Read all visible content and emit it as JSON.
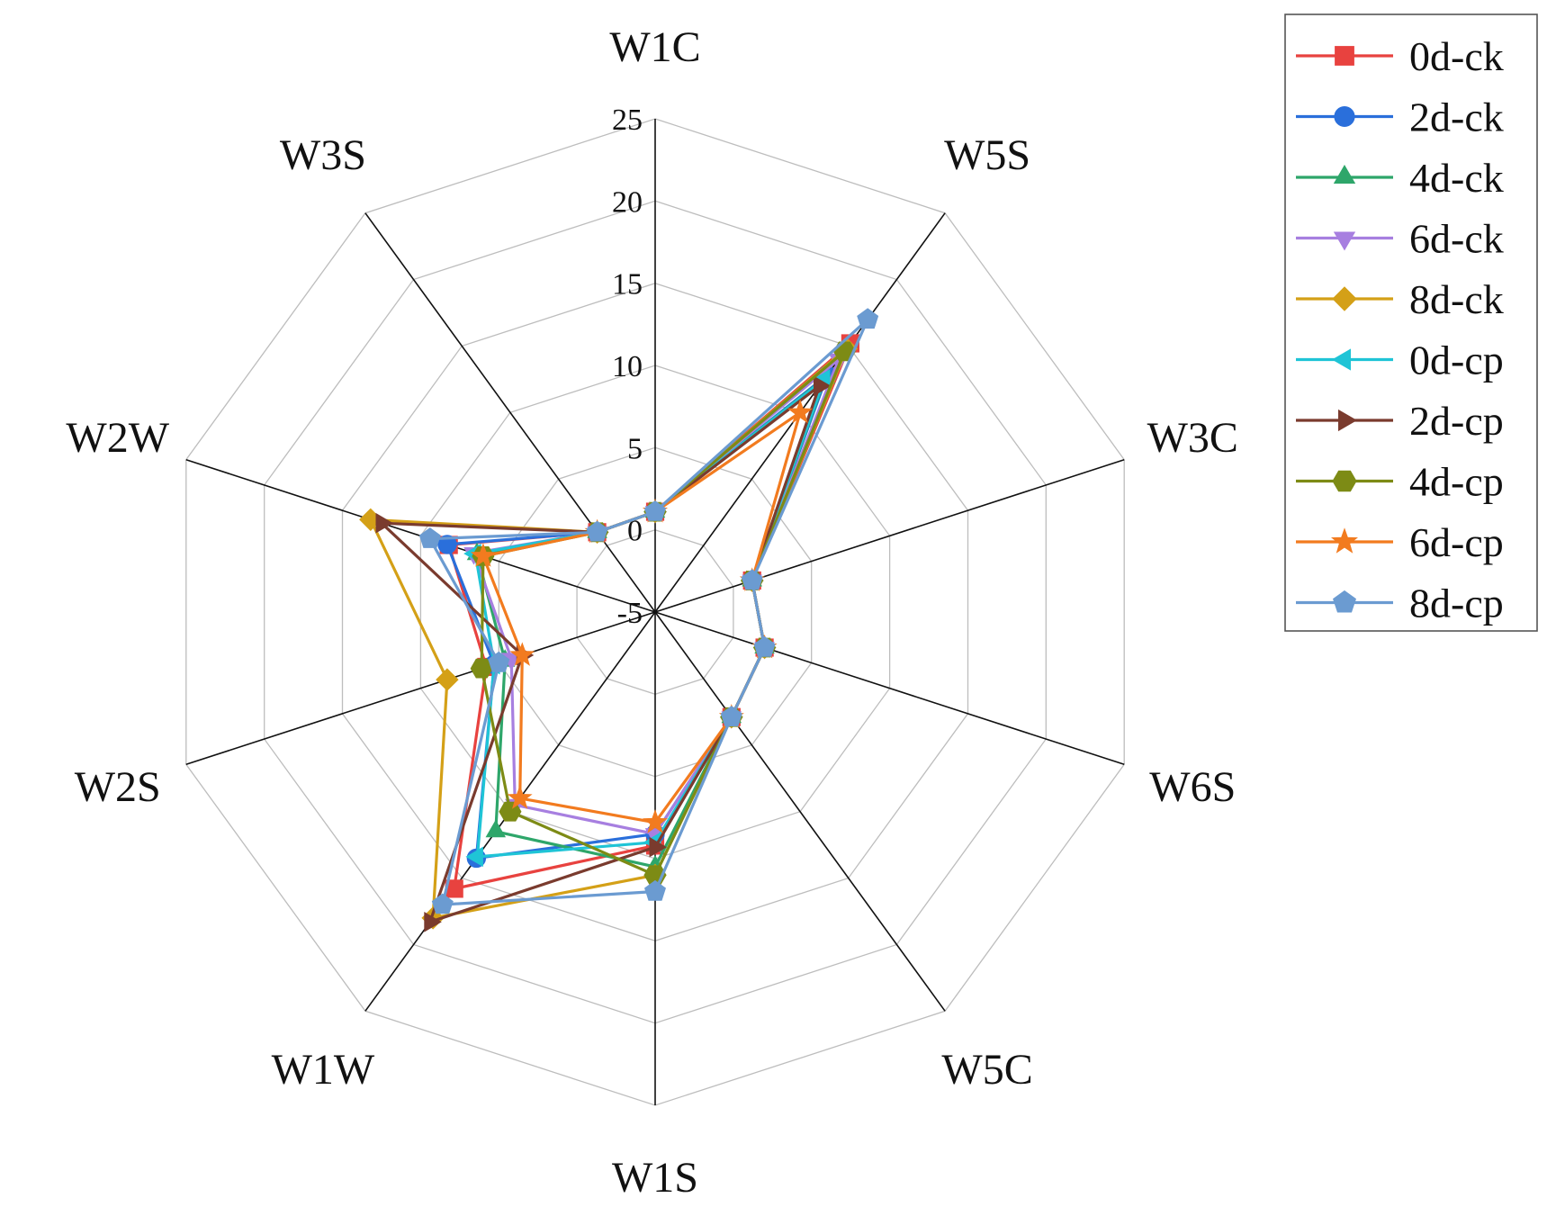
{
  "chart_data": {
    "type": "radar",
    "title": "",
    "axes": [
      "W1C",
      "W5S",
      "W3C",
      "W6S",
      "W5C",
      "W1S",
      "W1W",
      "W2S",
      "W2W",
      "W3S"
    ],
    "rlim": [
      -5,
      25
    ],
    "ticks": [
      -5,
      0,
      5,
      10,
      15,
      20,
      25
    ],
    "tick_labels": [
      "-5",
      "0",
      "5",
      "10",
      "15",
      "20",
      "25"
    ],
    "grid": true,
    "legend_position": "top-right",
    "series": [
      {
        "name": "0d-ck",
        "color": "#e8423f",
        "marker": "square",
        "values": [
          1.1,
          15.2,
          1.2,
          2.0,
          2.9,
          9.2,
          15.8,
          5.8,
          8.2,
          1.0
        ]
      },
      {
        "name": "2d-ck",
        "color": "#2a6fdb",
        "marker": "circle",
        "values": [
          1.1,
          12.8,
          1.2,
          2.0,
          2.9,
          8.5,
          13.5,
          5.3,
          8.3,
          1.0
        ]
      },
      {
        "name": "4d-ck",
        "color": "#2ea66a",
        "marker": "triangle-up",
        "values": [
          1.1,
          12.6,
          1.2,
          2.0,
          2.9,
          10.5,
          11.5,
          4.6,
          6.4,
          1.0
        ]
      },
      {
        "name": "6d-ck",
        "color": "#a77fe0",
        "marker": "triangle-down",
        "values": [
          1.1,
          14.0,
          1.2,
          2.0,
          2.9,
          8.5,
          9.5,
          4.2,
          6.6,
          1.0
        ]
      },
      {
        "name": "8d-ck",
        "color": "#d4a017",
        "marker": "diamond",
        "values": [
          1.1,
          14.8,
          1.2,
          2.0,
          2.9,
          11.0,
          18.0,
          8.3,
          13.2,
          1.0
        ]
      },
      {
        "name": "0d-cp",
        "color": "#1fc4d6",
        "marker": "triangle-left",
        "values": [
          1.1,
          12.5,
          1.2,
          2.0,
          2.9,
          9.0,
          13.4,
          5.3,
          6.5,
          1.0
        ]
      },
      {
        "name": "2d-cp",
        "color": "#7a3b2e",
        "marker": "triangle-right",
        "values": [
          1.1,
          12.0,
          1.2,
          2.0,
          2.9,
          9.3,
          18.3,
          3.5,
          12.5,
          1.0
        ]
      },
      {
        "name": "4d-cp",
        "color": "#7d8b15",
        "marker": "hexagon",
        "values": [
          1.1,
          14.6,
          1.2,
          2.0,
          2.9,
          11.0,
          10.0,
          6.1,
          6.0,
          1.0
        ]
      },
      {
        "name": "6d-cp",
        "color": "#f27b1f",
        "marker": "star",
        "values": [
          1.1,
          10.0,
          1.2,
          2.0,
          2.9,
          7.8,
          9.0,
          3.5,
          6.0,
          1.0
        ]
      },
      {
        "name": "8d-cp",
        "color": "#6b9bd1",
        "marker": "pentagon",
        "values": [
          1.1,
          17.0,
          1.2,
          2.0,
          2.9,
          12.0,
          17.0,
          5.0,
          9.4,
          1.0
        ]
      }
    ]
  }
}
